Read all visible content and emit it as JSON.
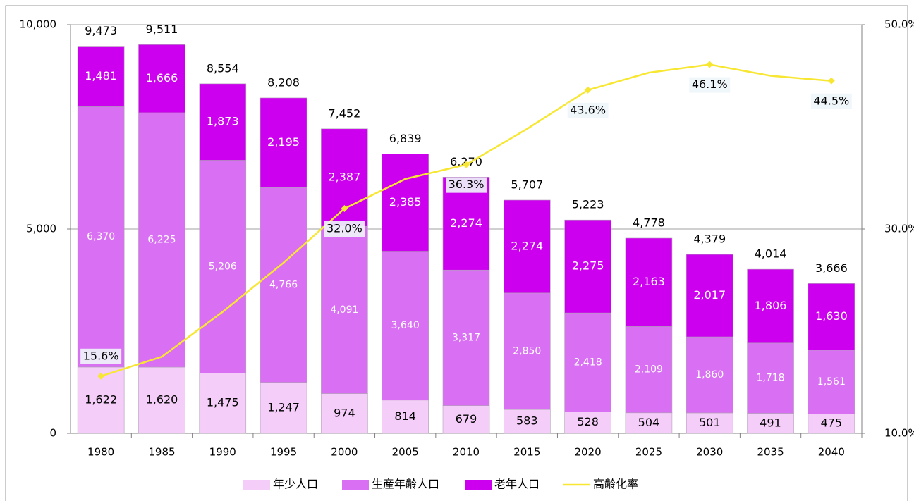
{
  "chart_data": {
    "type": "bar+line",
    "categories": [
      "1980",
      "1985",
      "1990",
      "1995",
      "2000",
      "2005",
      "2010",
      "2015",
      "2020",
      "2025",
      "2030",
      "2035",
      "2040"
    ],
    "series": [
      {
        "name": "年少人口",
        "color": "#f4cdf8",
        "values": [
          1622,
          1620,
          1475,
          1247,
          974,
          814,
          679,
          583,
          528,
          504,
          501,
          491,
          475
        ],
        "value_labels": [
          "1,622",
          "1,620",
          "1,475",
          "1,247",
          "974",
          "814",
          "679",
          "583",
          "528",
          "504",
          "501",
          "491",
          "475"
        ]
      },
      {
        "name": "生産年齢人口",
        "color": "#d96ff2",
        "values": [
          6370,
          6225,
          5206,
          4766,
          4091,
          3640,
          3317,
          2850,
          2418,
          2109,
          1860,
          1718,
          1561
        ],
        "value_labels": [
          "6,370",
          "6,225",
          "5,206",
          "4,766",
          "4,091",
          "3,640",
          "3,317",
          "2,850",
          "2,418",
          "2,109",
          "1,860",
          "1,718",
          "1,561"
        ]
      },
      {
        "name": "老年人口",
        "color": "#cc00ee",
        "values": [
          1481,
          1666,
          1873,
          2195,
          2387,
          2385,
          2274,
          2274,
          2275,
          2163,
          2017,
          1806,
          1630
        ],
        "value_labels": [
          "1,481",
          "1,666",
          "1,873",
          "2,195",
          "2,387",
          "2,385",
          "2,274",
          "2,274",
          "2,275",
          "2,163",
          "2,017",
          "1,806",
          "1,630"
        ]
      },
      {
        "name": "高齢化率",
        "color": "#f7e733",
        "axis": "y2",
        "values": [
          15.6,
          17.5,
          21.9,
          26.7,
          32.0,
          34.9,
          36.3,
          39.8,
          43.6,
          45.3,
          46.1,
          45.0,
          44.5
        ],
        "value_labels": [
          "15.6%",
          null,
          null,
          null,
          "32.0%",
          null,
          "36.3%",
          null,
          "43.6%",
          null,
          "46.1%",
          null,
          "44.5%"
        ]
      }
    ],
    "totals": [
      9473,
      9511,
      8554,
      8208,
      7452,
      6839,
      6270,
      5707,
      5223,
      4778,
      4379,
      4014,
      3666
    ],
    "total_labels": [
      "9,473",
      "9,511",
      "8,554",
      "8,208",
      "7,452",
      "6,839",
      "6,270",
      "5,707",
      "5,223",
      "4,778",
      "4,379",
      "4,014",
      "3,666"
    ],
    "ylim": [
      0,
      10000
    ],
    "yticks": [
      0,
      {
        "value": 5000,
        "label": "5,000"
      },
      {
        "value": 10000,
        "label": "10,000"
      }
    ],
    "y2lim": [
      10,
      50
    ],
    "y2ticks": [
      {
        "value": 10,
        "label": "10.0%"
      },
      {
        "value": 30,
        "label": "30.0%"
      },
      {
        "value": 50,
        "label": "50.0%"
      }
    ],
    "grid": true,
    "legend": "bottom"
  }
}
